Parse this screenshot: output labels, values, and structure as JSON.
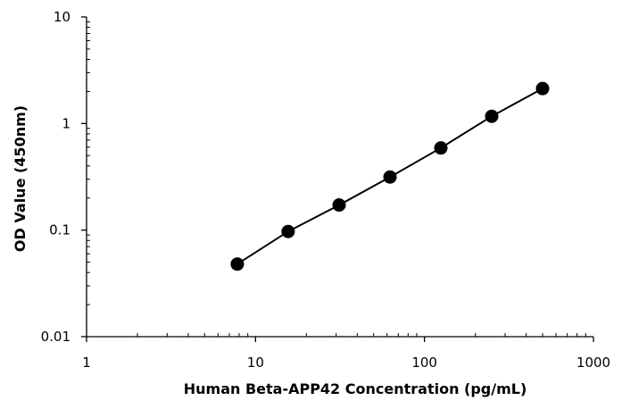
{
  "chart_data": {
    "type": "scatter",
    "title": "",
    "xlabel": "Human Beta-APP42 Concentration (pg/mL)",
    "ylabel": "OD Value (450nm)",
    "x_scale": "log",
    "y_scale": "log",
    "xlim": [
      1,
      1000
    ],
    "ylim": [
      0.01,
      10
    ],
    "x_ticks": [
      1,
      10,
      100,
      1000
    ],
    "x_tick_labels": [
      "1",
      "10",
      "100",
      "1000"
    ],
    "y_ticks": [
      0.01,
      0.1,
      1,
      10
    ],
    "y_tick_labels": [
      "0.01",
      "0.1",
      "1",
      "10"
    ],
    "grid": false,
    "legend": "none",
    "series": [
      {
        "x": [
          7.8,
          15.6,
          31.25,
          62.5,
          125,
          250,
          500
        ],
        "y": [
          0.048,
          0.097,
          0.172,
          0.315,
          0.59,
          1.17,
          2.13
        ],
        "marker": "circle",
        "line": "straight",
        "color": "#000000"
      }
    ]
  }
}
